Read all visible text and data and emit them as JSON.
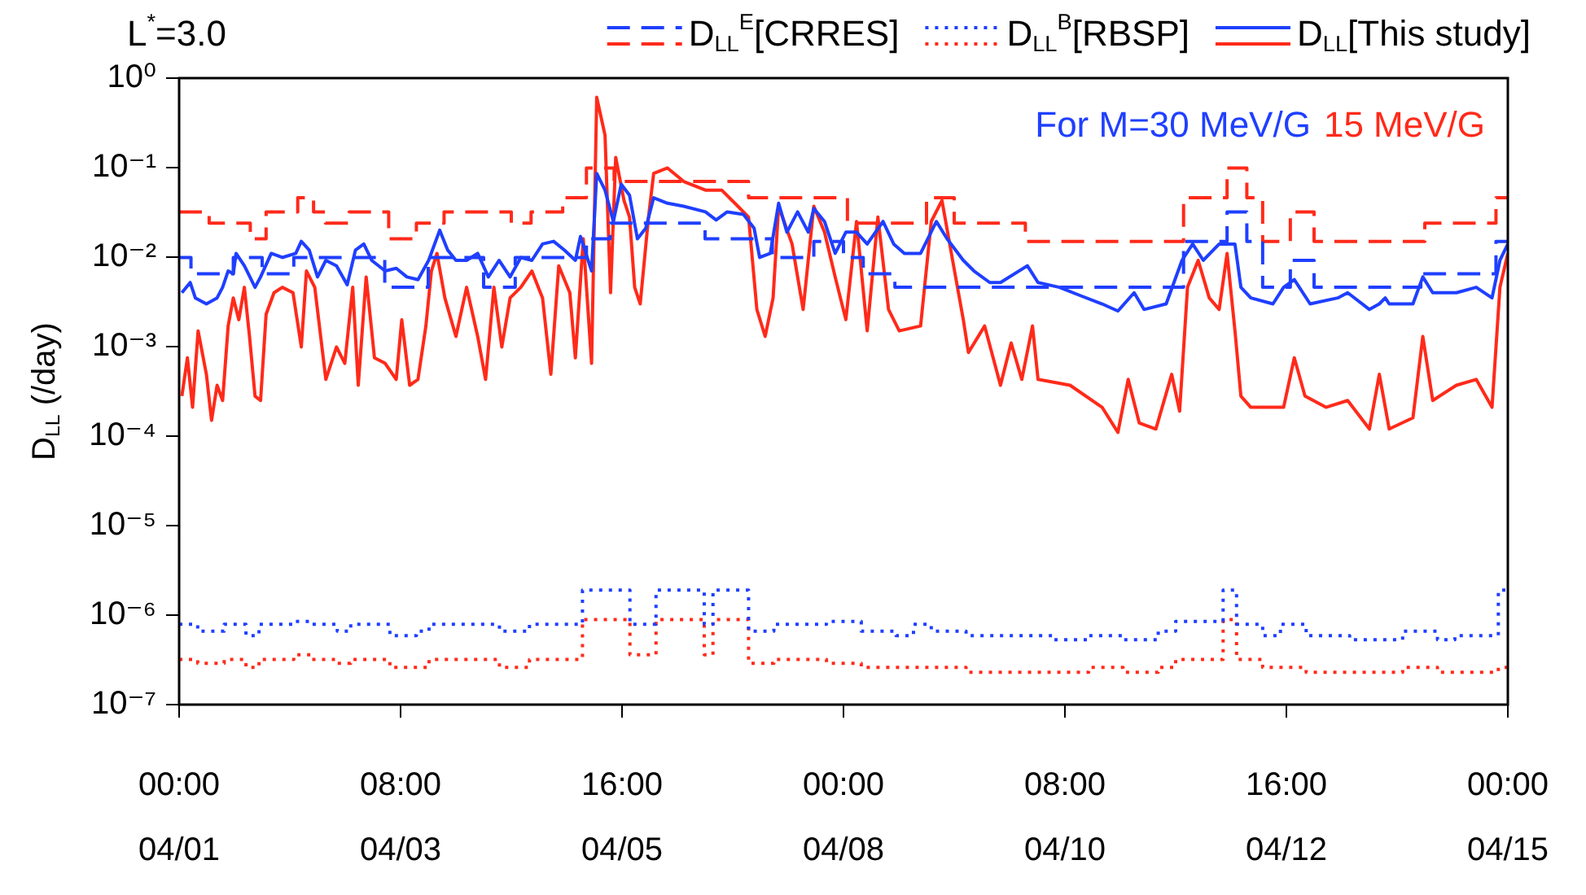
{
  "chart_data": {
    "type": "line",
    "legend_title": "L$^{*}$=3.0",
    "ylabel": "D$_{LL}$ (/day)",
    "legend": "top",
    "grid": false,
    "log": "y",
    "annotations": [
      "For M=30 MeV/G",
      "15 MeV/G"
    ],
    "xlim": [
      "--04-01T00:00",
      "--04-15T00:00"
    ],
    "xticks": [
      {
        "value": "--04-01T00:00",
        "label": "00:00 04/01"
      },
      {
        "value": "--04-03T08:00",
        "label": "08:00 04/03"
      },
      {
        "value": "--04-05T16:00",
        "label": "16:00 04/05"
      },
      {
        "value": "--04-08T00:00",
        "label": "00:00 04/08"
      },
      {
        "value": "--04-10T08:00",
        "label": "08:00 04/10"
      },
      {
        "value": "--04-12T16:00",
        "label": "16:00 04/12"
      },
      {
        "value": "--04-15T00:00",
        "label": "00:00 04/15"
      }
    ],
    "ylim": [
      1e-07,
      1
    ],
    "yticks": [
      {
        "value": 1e-07,
        "label": "10⁻⁷"
      },
      {
        "value": 1e-06,
        "label": "10⁻⁶"
      },
      {
        "value": 1e-05,
        "label": "10⁻⁵"
      },
      {
        "value": 0.0001,
        "label": "10⁻⁴"
      },
      {
        "value": 0.001,
        "label": "10⁻³"
      },
      {
        "value": 0.01,
        "label": "10⁻²"
      },
      {
        "value": 0.1,
        "label": "10⁻¹"
      },
      {
        "value": 1,
        "label": "10⁰"
      }
    ],
    "series": [
      {
        "name": "D$_{LL}$$^{E}$[CRRES]",
        "type": "step",
        "line_style": "dashed",
        "color": "#1f3fff",
        "x": [
          "--04-01T00:00",
          "--04-01T03:00",
          "--04-01T13:42",
          "--04-01T21:00",
          "--04-02T05:00",
          "--04-03T04:00",
          "--04-03T15:00",
          "--04-04T05:00",
          "--04-04T13:00",
          "--04-05T07:00",
          "--04-05T13:00",
          "--04-06T13:00",
          "--04-07T06:00",
          "--04-07T16:30",
          "--04-08T00:00",
          "--04-08T05:00",
          "--04-08T13:00",
          "--04-11T14:00",
          "--04-12T01:00",
          "--04-12T06:00",
          "--04-12T10:00",
          "--04-12T17:00",
          "--04-12T23:00",
          "--04-14T02:00",
          "--04-14T21:00",
          "--04-15T00:00"
        ],
        "values": [
          0.0099,
          0.0065,
          0.0099,
          0.0065,
          0.0099,
          0.0046,
          0.0099,
          0.0046,
          0.0099,
          0.016,
          0.024,
          0.016,
          0.0099,
          0.015,
          0.0099,
          0.0065,
          0.0046,
          0.015,
          0.032,
          0.015,
          0.0046,
          0.0092,
          0.0046,
          0.0065,
          0.015,
          0.015
        ]
      },
      {
        "type": "step",
        "line_style": "dashed",
        "color": "#ff2a1a",
        "x": [
          "--04-01T00:00",
          "--04-01T07:36",
          "--04-01T18:00",
          "--04-01T22:00",
          "--04-02T06:00",
          "--04-02T10:00",
          "--04-02T13:00",
          "--04-02T19:00",
          "--04-03T05:00",
          "--04-03T12:00",
          "--04-03T19:00",
          "--04-04T12:00",
          "--04-04T17:00",
          "--04-05T01:00",
          "--04-05T07:00",
          "--04-05T14:00",
          "--04-07T00:00",
          "--04-08T01:00",
          "--04-08T21:00",
          "--04-09T04:00",
          "--04-09T22:00",
          "--04-11T14:00",
          "--04-12T01:00",
          "--04-12T06:00",
          "--04-12T10:00",
          "--04-12T17:00",
          "--04-12T23:00",
          "--04-14T03:00",
          "--04-14T21:00",
          "--04-15T00:00"
        ],
        "values": [
          0.032,
          0.024,
          0.016,
          0.032,
          0.046,
          0.032,
          0.024,
          0.032,
          0.016,
          0.024,
          0.032,
          0.024,
          0.032,
          0.046,
          0.099,
          0.07,
          0.046,
          0.024,
          0.046,
          0.024,
          0.015,
          0.046,
          0.099,
          0.046,
          0.015,
          0.032,
          0.015,
          0.024,
          0.046,
          0.046
        ]
      },
      {
        "name": "D$_{LL}$$^{B}$[RBSP]",
        "type": "step",
        "line_style": "dotted",
        "color": "#1f3fff",
        "x": [
          "--04-01T00:00",
          "--04-01T04:42",
          "--04-01T11:24",
          "--04-01T16:54",
          "--04-01T20:12",
          "--04-02T05:00",
          "--04-02T09:24",
          "--04-02T16:00",
          "--04-02T19:24",
          "--04-03T02:00",
          "--04-03T05:18",
          "--04-03T12:00",
          "--04-03T15:12",
          "--04-04T09:00",
          "--04-04T16:36",
          "--04-05T06:00",
          "--04-05T18:00",
          "--04-06T00:36",
          "--04-06T12:48",
          "--04-06T15:00",
          "--04-07T00:00",
          "--04-07T06:24",
          "--04-07T19:42",
          "--04-08T04:30",
          "--04-08T13:18",
          "--04-08T17:42",
          "--04-08T22:12",
          "--04-09T07:00",
          "--04-10T05:00",
          "--04-10T14:00",
          "--04-10T22:42",
          "--04-11T07:36",
          "--04-11T12:00",
          "--04-12T00:00",
          "--04-12T03:24",
          "--04-12T10:00",
          "--04-12T14:30",
          "--04-12T21:00",
          "--04-13T08:00",
          "--04-13T21:24",
          "--04-14T06:12",
          "--04-14T10:36",
          "--04-14T21:36",
          "--04-15T00:00"
        ],
        "values": [
          7.9e-07,
          6.6e-07,
          7.9e-07,
          5.9e-07,
          7.9e-07,
          8.5e-07,
          7.9e-07,
          6.6e-07,
          7.9e-07,
          7.9e-07,
          5.9e-07,
          6.6e-07,
          7.9e-07,
          6.6e-07,
          7.9e-07,
          1.9e-06,
          7.9e-07,
          1.9e-06,
          7.9e-07,
          1.9e-06,
          6.6e-07,
          7.9e-07,
          8.5e-07,
          6.6e-07,
          5.9e-07,
          7.9e-07,
          6.6e-07,
          5.9e-07,
          5.3e-07,
          5.9e-07,
          5.3e-07,
          6.6e-07,
          8.5e-07,
          1.9e-06,
          7.9e-07,
          5.9e-07,
          7.9e-07,
          5.9e-07,
          5.3e-07,
          6.6e-07,
          5.3e-07,
          5.9e-07,
          1.9e-06,
          1.9e-06
        ]
      },
      {
        "type": "step",
        "line_style": "dotted",
        "color": "#ff2a1a",
        "x": [
          "--04-01T00:00",
          "--04-01T04:42",
          "--04-01T11:24",
          "--04-01T16:54",
          "--04-01T20:12",
          "--04-02T05:00",
          "--04-02T09:24",
          "--04-02T16:00",
          "--04-02T19:24",
          "--04-03T05:18",
          "--04-03T15:12",
          "--04-04T09:00",
          "--04-04T16:36",
          "--04-05T06:00",
          "--04-05T18:00",
          "--04-06T00:36",
          "--04-06T12:48",
          "--04-06T15:00",
          "--04-07T00:00",
          "--04-07T06:24",
          "--04-07T19:42",
          "--04-08T04:30",
          "--04-09T07:00",
          "--04-10T14:00",
          "--04-10T22:42",
          "--04-11T07:36",
          "--04-11T12:00",
          "--04-12T00:00",
          "--04-12T03:24",
          "--04-12T10:00",
          "--04-12T21:00",
          "--04-13T21:24",
          "--04-14T06:12",
          "--04-14T21:36",
          "--04-15T00:00"
        ],
        "values": [
          3.2e-07,
          2.9e-07,
          3.2e-07,
          2.6e-07,
          3.2e-07,
          3.6e-07,
          3.2e-07,
          2.9e-07,
          3.2e-07,
          2.6e-07,
          3.2e-07,
          2.6e-07,
          3.2e-07,
          8.9e-07,
          3.6e-07,
          8.9e-07,
          3.6e-07,
          8.9e-07,
          2.9e-07,
          3.2e-07,
          2.9e-07,
          2.6e-07,
          2.3e-07,
          2.6e-07,
          2.3e-07,
          2.6e-07,
          3.2e-07,
          8.9e-07,
          3.2e-07,
          2.6e-07,
          2.3e-07,
          2.6e-07,
          2.3e-07,
          2.6e-07,
          2.6e-07
        ]
      },
      {
        "name": "D$_{LL}$[This study]",
        "line_style": "solid",
        "color": "#1f3fff",
        "x": [
          "--04-01T00:42",
          "--04-01T02:48",
          "--04-01T04:06",
          "--04-01T06:54",
          "--04-01T09:36",
          "--04-01T11:00",
          "--04-01T12:24",
          "--04-01T13:42",
          "--04-01T14:24",
          "--04-01T16:30",
          "--04-01T19:12",
          "--04-01T20:36",
          "--04-01T23:18",
          "--04-02T02:06",
          "--04-02T05:30",
          "--04-02T06:54",
          "--04-02T08:54",
          "--04-02T11:00",
          "--04-02T13:06",
          "--04-02T15:48",
          "--04-02T18:30",
          "--04-02T20:36",
          "--04-02T22:42",
          "--04-03T00:42",
          "--04-03T04:06",
          "--04-03T06:54",
          "--04-03T09:36",
          "--04-03T12:24",
          "--04-03T15:06",
          "--04-03T17:54",
          "--04-03T19:54",
          "--04-03T22:00",
          "--04-04T00:42",
          "--04-04T03:30",
          "--04-04T06:12",
          "--04-04T08:54",
          "--04-04T11:42",
          "--04-04T14:24",
          "--04-04T17:12",
          "--04-04T19:54",
          "--04-04T22:42",
          "--04-05T01:24",
          "--04-05T04:12",
          "--04-05T05:30",
          "--04-05T08:18",
          "--04-05T09:36",
          "--04-05T11:42",
          "--04-05T13:48",
          "--04-05T15:48",
          "--04-05T17:54",
          "--04-05T19:54",
          "--04-05T22:00",
          "--04-06T00:00",
          "--04-06T03:30",
          "--04-06T07:36",
          "--04-06T13:06",
          "--04-06T15:48",
          "--04-06T18:36",
          "--04-06T22:42",
          "--04-07T01:24",
          "--04-07T02:48",
          "--04-07T05:30",
          "--04-07T07:36",
          "--04-07T09:42",
          "--04-07T12:24",
          "--04-07T15:06",
          "--04-07T16:30",
          "--04-07T19:12",
          "--04-07T21:54",
          "--04-08T00:36",
          "--04-08T03:18",
          "--04-08T06:00",
          "--04-08T10:00",
          "--04-08T12:42",
          "--04-08T15:24",
          "--04-08T19:30",
          "--04-08T23:30",
          "--04-09T02:12",
          "--04-09T06:18",
          "--04-09T09:00",
          "--04-09T13:00",
          "--04-09T15:42",
          "--04-09T22:30",
          "--04-10T01:12",
          "--04-10T06:36",
          "--04-10T12:00",
          "--04-10T17:24",
          "--04-10T21:24",
          "--04-11T01:30",
          "--04-11T04:00",
          "--04-11T09:36",
          "--04-11T13:36",
          "--04-11T16:18",
          "--04-11T19:00",
          "--04-11T23:00",
          "--04-12T03:00",
          "--04-12T04:30",
          "--04-12T07:00",
          "--04-12T12:36",
          "--04-12T15:18",
          "--04-12T18:00",
          "--04-12T22:00",
          "--04-13T05:00",
          "--04-13T07:30",
          "--04-13T13:00",
          "--04-13T15:30",
          "--04-13T17:00",
          "--04-13T18:00",
          "--04-14T00:00",
          "--04-14T02:30",
          "--04-14T05:00",
          "--04-14T11:00",
          "--04-14T16:00",
          "--04-14T20:00",
          "--04-14T22:00",
          "--04-15T00:00"
        ],
        "values": [
          0.004,
          0.0052,
          0.0035,
          0.003,
          0.0035,
          0.0046,
          0.007,
          0.0065,
          0.011,
          0.008,
          0.0046,
          0.006,
          0.011,
          0.0099,
          0.011,
          0.015,
          0.012,
          0.006,
          0.0092,
          0.008,
          0.0049,
          0.012,
          0.014,
          0.0092,
          0.007,
          0.0075,
          0.006,
          0.0056,
          0.0092,
          0.02,
          0.012,
          0.0092,
          0.0092,
          0.011,
          0.006,
          0.0092,
          0.006,
          0.0099,
          0.0092,
          0.014,
          0.015,
          0.012,
          0.0092,
          0.017,
          0.007,
          0.086,
          0.056,
          0.025,
          0.065,
          0.049,
          0.016,
          0.021,
          0.046,
          0.04,
          0.037,
          0.032,
          0.026,
          0.032,
          0.03,
          0.021,
          0.0099,
          0.011,
          0.04,
          0.019,
          0.032,
          0.019,
          0.035,
          0.025,
          0.011,
          0.019,
          0.019,
          0.014,
          0.025,
          0.014,
          0.011,
          0.011,
          0.025,
          0.016,
          0.0092,
          0.007,
          0.0052,
          0.0052,
          0.008,
          0.0052,
          0.0046,
          0.0037,
          0.003,
          0.0025,
          0.004,
          0.0026,
          0.003,
          0.0092,
          0.014,
          0.0092,
          0.014,
          0.014,
          0.0046,
          0.0035,
          0.003,
          0.0046,
          0.0056,
          0.003,
          0.0035,
          0.004,
          0.0026,
          0.003,
          0.0035,
          0.003,
          0.003,
          0.006,
          0.004,
          0.004,
          0.0046,
          0.0035,
          0.0092,
          0.014
        ]
      },
      {
        "line_style": "solid",
        "color": "#ff2a1a",
        "x": [
          "--04-01T00:42",
          "--04-01T02:06",
          "--04-01T03:24",
          "--04-01T04:48",
          "--04-01T06:54",
          "--04-01T08:12",
          "--04-01T09:36",
          "--04-01T11:00",
          "--04-01T12:24",
          "--04-01T13:42",
          "--04-01T15:06",
          "--04-01T16:30",
          "--04-01T17:48",
          "--04-01T19:12",
          "--04-01T20:36",
          "--04-01T22:00",
          "--04-02T00:00",
          "--04-02T02:06",
          "--04-02T04:48",
          "--04-02T06:54",
          "--04-02T08:12",
          "--04-02T10:18",
          "--04-02T13:06",
          "--04-02T15:48",
          "--04-02T17:54",
          "--04-02T19:54",
          "--04-02T21:18",
          "--04-02T23:18",
          "--04-03T01:24",
          "--04-03T04:06",
          "--04-03T06:54",
          "--04-03T08:18",
          "--04-03T10:18",
          "--04-03T12:24",
          "--04-03T14:24",
          "--04-03T15:48",
          "--04-03T17:12",
          "--04-03T19:12",
          "--04-03T22:00",
          "--04-04T00:42",
          "--04-04T03:30",
          "--04-04T05:30",
          "--04-04T07:36",
          "--04-04T09:36",
          "--04-04T11:42",
          "--04-04T14:24",
          "--04-04T17:12",
          "--04-04T19:54",
          "--04-04T22:00",
          "--04-05T00:00",
          "--04-05T02:48",
          "--04-05T04:12",
          "--04-05T06:12",
          "--04-05T08:18",
          "--04-05T09:36",
          "--04-05T11:42",
          "--04-05T13:06",
          "--04-05T14:24",
          "--04-05T16:30",
          "--04-05T17:54",
          "--04-05T19:12",
          "--04-05T20:36",
          "--04-05T22:42",
          "--04-06T00:00",
          "--04-06T03:30",
          "--04-06T07:36",
          "--04-06T13:06",
          "--04-06T17:12",
          "--04-06T21:18",
          "--04-07T00:00",
          "--04-07T02:06",
          "--04-07T04:12",
          "--04-07T06:12",
          "--04-07T07:36",
          "--04-07T11:00",
          "--04-07T13:48",
          "--04-07T16:30",
          "--04-07T19:12",
          "--04-07T21:54",
          "--04-08T00:36",
          "--04-08T03:18",
          "--04-08T06:00",
          "--04-08T08:42",
          "--04-08T11:24",
          "--04-08T14:06",
          "--04-08T19:30",
          "--04-08T22:12",
          "--04-09T00:54",
          "--04-09T03:36",
          "--04-09T06:18",
          "--04-09T07:36",
          "--04-09T11:42",
          "--04-09T15:42",
          "--04-09T18:24",
          "--04-09T21:06",
          "--04-09T23:48",
          "--04-10T01:12",
          "--04-10T09:18",
          "--04-10T17:24",
          "--04-10T21:24",
          "--04-11T00:00",
          "--04-11T02:48",
          "--04-11T07:00",
          "--04-11T11:00",
          "--04-11T13:00",
          "--04-11T15:00",
          "--04-11T17:42",
          "--04-11T20:30",
          "--04-11T23:00",
          "--04-12T01:00",
          "--04-12T03:00",
          "--04-12T04:30",
          "--04-12T07:00",
          "--04-12T11:00",
          "--04-12T15:18",
          "--04-12T18:00",
          "--04-12T20:42",
          "--04-13T02:00",
          "--04-13T07:30",
          "--04-13T13:00",
          "--04-13T15:30",
          "--04-13T18:00",
          "--04-14T00:00",
          "--04-14T02:30",
          "--04-14T05:00",
          "--04-14T11:00",
          "--04-14T16:00",
          "--04-14T20:00",
          "--04-14T22:00",
          "--04-15T00:00"
        ],
        "values": [
          0.00028,
          0.00075,
          0.00021,
          0.0015,
          0.00049,
          0.00015,
          0.00037,
          0.00025,
          0.0017,
          0.0035,
          0.002,
          0.0046,
          0.0013,
          0.00028,
          0.00025,
          0.0023,
          0.004,
          0.0046,
          0.004,
          0.00099,
          0.007,
          0.0046,
          0.00043,
          0.00099,
          0.00065,
          0.0046,
          0.00037,
          0.006,
          0.00075,
          0.00065,
          0.00043,
          0.002,
          0.00037,
          0.00043,
          0.0017,
          0.007,
          0.011,
          0.0035,
          0.0013,
          0.0046,
          0.0013,
          0.00043,
          0.0046,
          0.00099,
          0.0035,
          0.0046,
          0.007,
          0.0035,
          0.00049,
          0.008,
          0.004,
          0.00075,
          0.016,
          0.00065,
          0.61,
          0.23,
          0.004,
          0.13,
          0.043,
          0.028,
          0.0046,
          0.003,
          0.028,
          0.086,
          0.099,
          0.07,
          0.056,
          0.056,
          0.037,
          0.028,
          0.0026,
          0.0013,
          0.0035,
          0.037,
          0.014,
          0.0026,
          0.037,
          0.019,
          0.006,
          0.002,
          0.025,
          0.0015,
          0.028,
          0.0026,
          0.0015,
          0.0017,
          0.025,
          0.043,
          0.0092,
          0.002,
          0.00086,
          0.0017,
          0.00037,
          0.0011,
          0.00043,
          0.0017,
          0.00043,
          0.00037,
          0.00021,
          0.00011,
          0.00043,
          0.00014,
          0.00012,
          0.00049,
          0.00019,
          0.0046,
          0.0092,
          0.0035,
          0.0026,
          0.011,
          0.0015,
          0.00028,
          0.00021,
          0.00021,
          0.00021,
          0.00075,
          0.00028,
          0.00021,
          0.00025,
          0.00012,
          0.00049,
          0.00012,
          0.00016,
          0.0013,
          0.00025,
          0.00037,
          0.00043,
          0.00021,
          0.0046,
          0.011
        ]
      }
    ]
  }
}
